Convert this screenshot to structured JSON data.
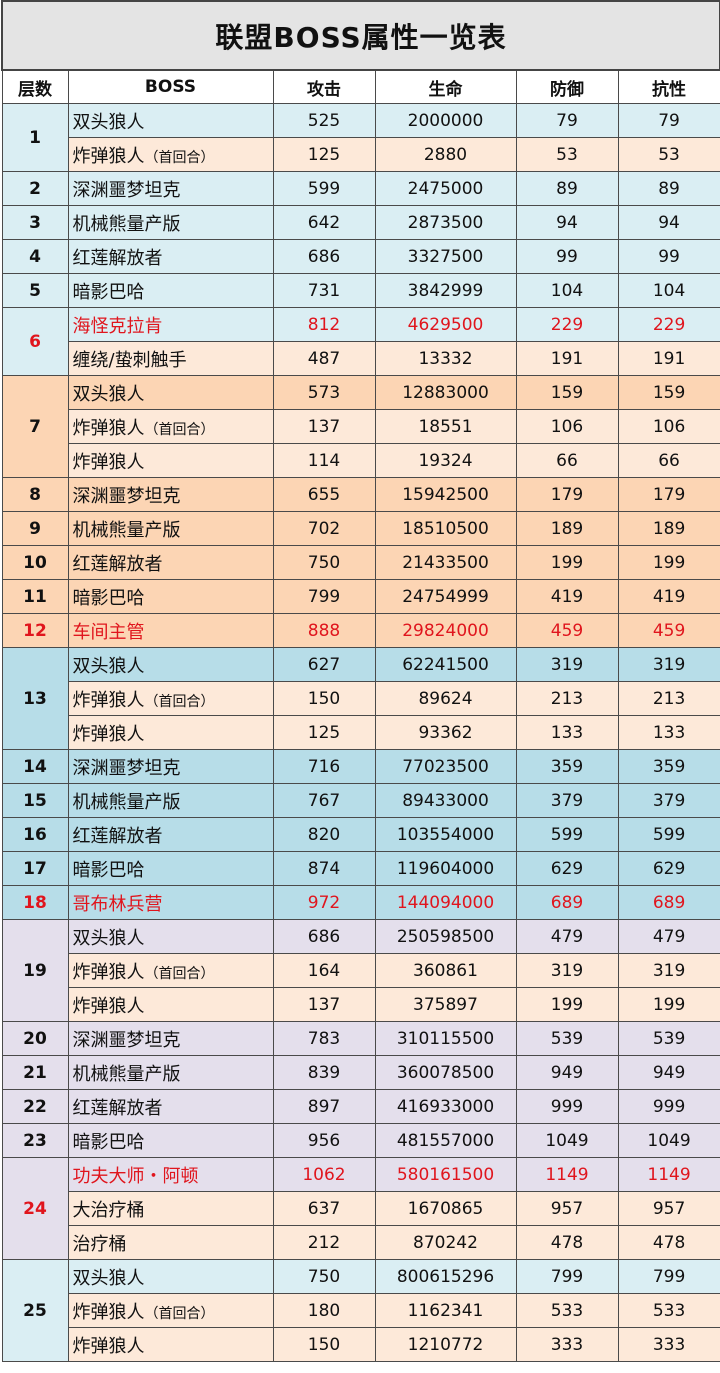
{
  "title": "联盟BOSS属性一览表",
  "headers": [
    "层数",
    "BOSS",
    "攻击",
    "生命",
    "防御",
    "抗性"
  ],
  "colors": {
    "blue": "#daeef3",
    "orange": "#fcd5b4",
    "teal": "#b7dde8",
    "lavender": "#e4dfec",
    "peach": "#fde9d9",
    "red_text": "#e0151d"
  },
  "groups": [
    {
      "floor": "1",
      "color": "blue",
      "rows": [
        {
          "name": "双头狼人",
          "note": "",
          "atk": "525",
          "hp": "2000000",
          "def": "79",
          "res": "79",
          "bg": "blue",
          "red": false
        },
        {
          "name": "炸弹狼人",
          "note": "（首回合）",
          "atk": "125",
          "hp": "2880",
          "def": "53",
          "res": "53",
          "bg": "peach",
          "red": false
        }
      ]
    },
    {
      "floor": "2",
      "color": "blue",
      "rows": [
        {
          "name": "深渊噩梦坦克",
          "note": "",
          "atk": "599",
          "hp": "2475000",
          "def": "89",
          "res": "89",
          "bg": "blue",
          "red": false
        }
      ]
    },
    {
      "floor": "3",
      "color": "blue",
      "rows": [
        {
          "name": "机械熊量产版",
          "note": "",
          "atk": "642",
          "hp": "2873500",
          "def": "94",
          "res": "94",
          "bg": "blue",
          "red": false
        }
      ]
    },
    {
      "floor": "4",
      "color": "blue",
      "rows": [
        {
          "name": "红莲解放者",
          "note": "",
          "atk": "686",
          "hp": "3327500",
          "def": "99",
          "res": "99",
          "bg": "blue",
          "red": false
        }
      ]
    },
    {
      "floor": "5",
      "color": "blue",
      "rows": [
        {
          "name": "暗影巴哈",
          "note": "",
          "atk": "731",
          "hp": "3842999",
          "def": "104",
          "res": "104",
          "bg": "blue",
          "red": false
        }
      ]
    },
    {
      "floor": "6",
      "color": "blue",
      "red": true,
      "rows": [
        {
          "name": "海怪克拉肯",
          "note": "",
          "atk": "812",
          "hp": "4629500",
          "def": "229",
          "res": "229",
          "bg": "blue",
          "red": true
        },
        {
          "name": "缠绕/蛰刺触手",
          "note": "",
          "atk": "487",
          "hp": "13332",
          "def": "191",
          "res": "191",
          "bg": "peach",
          "red": false
        }
      ]
    },
    {
      "floor": "7",
      "color": "orange",
      "rows": [
        {
          "name": "双头狼人",
          "note": "",
          "atk": "573",
          "hp": "12883000",
          "def": "159",
          "res": "159",
          "bg": "orange",
          "red": false
        },
        {
          "name": "炸弹狼人",
          "note": "（首回合）",
          "atk": "137",
          "hp": "18551",
          "def": "106",
          "res": "106",
          "bg": "peach",
          "red": false
        },
        {
          "name": "炸弹狼人",
          "note": "",
          "atk": "114",
          "hp": "19324",
          "def": "66",
          "res": "66",
          "bg": "peach",
          "red": false
        }
      ]
    },
    {
      "floor": "8",
      "color": "orange",
      "rows": [
        {
          "name": "深渊噩梦坦克",
          "note": "",
          "atk": "655",
          "hp": "15942500",
          "def": "179",
          "res": "179",
          "bg": "orange",
          "red": false
        }
      ]
    },
    {
      "floor": "9",
      "color": "orange",
      "rows": [
        {
          "name": "机械熊量产版",
          "note": "",
          "atk": "702",
          "hp": "18510500",
          "def": "189",
          "res": "189",
          "bg": "orange",
          "red": false
        }
      ]
    },
    {
      "floor": "10",
      "color": "orange",
      "rows": [
        {
          "name": "红莲解放者",
          "note": "",
          "atk": "750",
          "hp": "21433500",
          "def": "199",
          "res": "199",
          "bg": "orange",
          "red": false
        }
      ]
    },
    {
      "floor": "11",
      "color": "orange",
      "rows": [
        {
          "name": "暗影巴哈",
          "note": "",
          "atk": "799",
          "hp": "24754999",
          "def": "419",
          "res": "419",
          "bg": "orange",
          "red": false
        }
      ]
    },
    {
      "floor": "12",
      "color": "orange",
      "red": true,
      "rows": [
        {
          "name": "车间主管",
          "note": "",
          "atk": "888",
          "hp": "29824000",
          "def": "459",
          "res": "459",
          "bg": "orange",
          "red": true
        }
      ]
    },
    {
      "floor": "13",
      "color": "teal",
      "rows": [
        {
          "name": "双头狼人",
          "note": "",
          "atk": "627",
          "hp": "62241500",
          "def": "319",
          "res": "319",
          "bg": "teal",
          "red": false
        },
        {
          "name": "炸弹狼人",
          "note": "（首回合）",
          "atk": "150",
          "hp": "89624",
          "def": "213",
          "res": "213",
          "bg": "peach",
          "red": false
        },
        {
          "name": "炸弹狼人",
          "note": "",
          "atk": "125",
          "hp": "93362",
          "def": "133",
          "res": "133",
          "bg": "peach",
          "red": false
        }
      ]
    },
    {
      "floor": "14",
      "color": "teal",
      "rows": [
        {
          "name": "深渊噩梦坦克",
          "note": "",
          "atk": "716",
          "hp": "77023500",
          "def": "359",
          "res": "359",
          "bg": "teal",
          "red": false
        }
      ]
    },
    {
      "floor": "15",
      "color": "teal",
      "rows": [
        {
          "name": "机械熊量产版",
          "note": "",
          "atk": "767",
          "hp": "89433000",
          "def": "379",
          "res": "379",
          "bg": "teal",
          "red": false
        }
      ]
    },
    {
      "floor": "16",
      "color": "teal",
      "rows": [
        {
          "name": "红莲解放者",
          "note": "",
          "atk": "820",
          "hp": "103554000",
          "def": "599",
          "res": "599",
          "bg": "teal",
          "red": false
        }
      ]
    },
    {
      "floor": "17",
      "color": "teal",
      "rows": [
        {
          "name": "暗影巴哈",
          "note": "",
          "atk": "874",
          "hp": "119604000",
          "def": "629",
          "res": "629",
          "bg": "teal",
          "red": false
        }
      ]
    },
    {
      "floor": "18",
      "color": "teal",
      "red": true,
      "rows": [
        {
          "name": "哥布林兵营",
          "note": "",
          "atk": "972",
          "hp": "144094000",
          "def": "689",
          "res": "689",
          "bg": "teal",
          "red": true
        }
      ]
    },
    {
      "floor": "19",
      "color": "lavender",
      "rows": [
        {
          "name": "双头狼人",
          "note": "",
          "atk": "686",
          "hp": "250598500",
          "def": "479",
          "res": "479",
          "bg": "lavender",
          "red": false
        },
        {
          "name": "炸弹狼人",
          "note": "（首回合）",
          "atk": "164",
          "hp": "360861",
          "def": "319",
          "res": "319",
          "bg": "peach",
          "red": false
        },
        {
          "name": "炸弹狼人",
          "note": "",
          "atk": "137",
          "hp": "375897",
          "def": "199",
          "res": "199",
          "bg": "peach",
          "red": false
        }
      ]
    },
    {
      "floor": "20",
      "color": "lavender",
      "rows": [
        {
          "name": "深渊噩梦坦克",
          "note": "",
          "atk": "783",
          "hp": "310115500",
          "def": "539",
          "res": "539",
          "bg": "lavender",
          "red": false
        }
      ]
    },
    {
      "floor": "21",
      "color": "lavender",
      "rows": [
        {
          "name": "机械熊量产版",
          "note": "",
          "atk": "839",
          "hp": "360078500",
          "def": "949",
          "res": "949",
          "bg": "lavender",
          "red": false
        }
      ]
    },
    {
      "floor": "22",
      "color": "lavender",
      "rows": [
        {
          "name": "红莲解放者",
          "note": "",
          "atk": "897",
          "hp": "416933000",
          "def": "999",
          "res": "999",
          "bg": "lavender",
          "red": false
        }
      ]
    },
    {
      "floor": "23",
      "color": "lavender",
      "rows": [
        {
          "name": "暗影巴哈",
          "note": "",
          "atk": "956",
          "hp": "481557000",
          "def": "1049",
          "res": "1049",
          "bg": "lavender",
          "red": false
        }
      ]
    },
    {
      "floor": "24",
      "color": "lavender",
      "red": true,
      "rows": [
        {
          "name": "功夫大师・阿顿",
          "note": "",
          "atk": "1062",
          "hp": "580161500",
          "def": "1149",
          "res": "1149",
          "bg": "lavender",
          "red": true
        },
        {
          "name": "大治疗桶",
          "note": "",
          "atk": "637",
          "hp": "1670865",
          "def": "957",
          "res": "957",
          "bg": "peach",
          "red": false
        },
        {
          "name": "治疗桶",
          "note": "",
          "atk": "212",
          "hp": "870242",
          "def": "478",
          "res": "478",
          "bg": "peach",
          "red": false
        }
      ]
    },
    {
      "floor": "25",
      "color": "blue",
      "rows": [
        {
          "name": "双头狼人",
          "note": "",
          "atk": "750",
          "hp": "800615296",
          "def": "799",
          "res": "799",
          "bg": "blue",
          "red": false
        },
        {
          "name": "炸弹狼人",
          "note": "（首回合）",
          "atk": "180",
          "hp": "1162341",
          "def": "533",
          "res": "533",
          "bg": "peach",
          "red": false
        },
        {
          "name": "炸弹狼人",
          "note": "",
          "atk": "150",
          "hp": "1210772",
          "def": "333",
          "res": "333",
          "bg": "peach",
          "red": false
        }
      ]
    }
  ]
}
